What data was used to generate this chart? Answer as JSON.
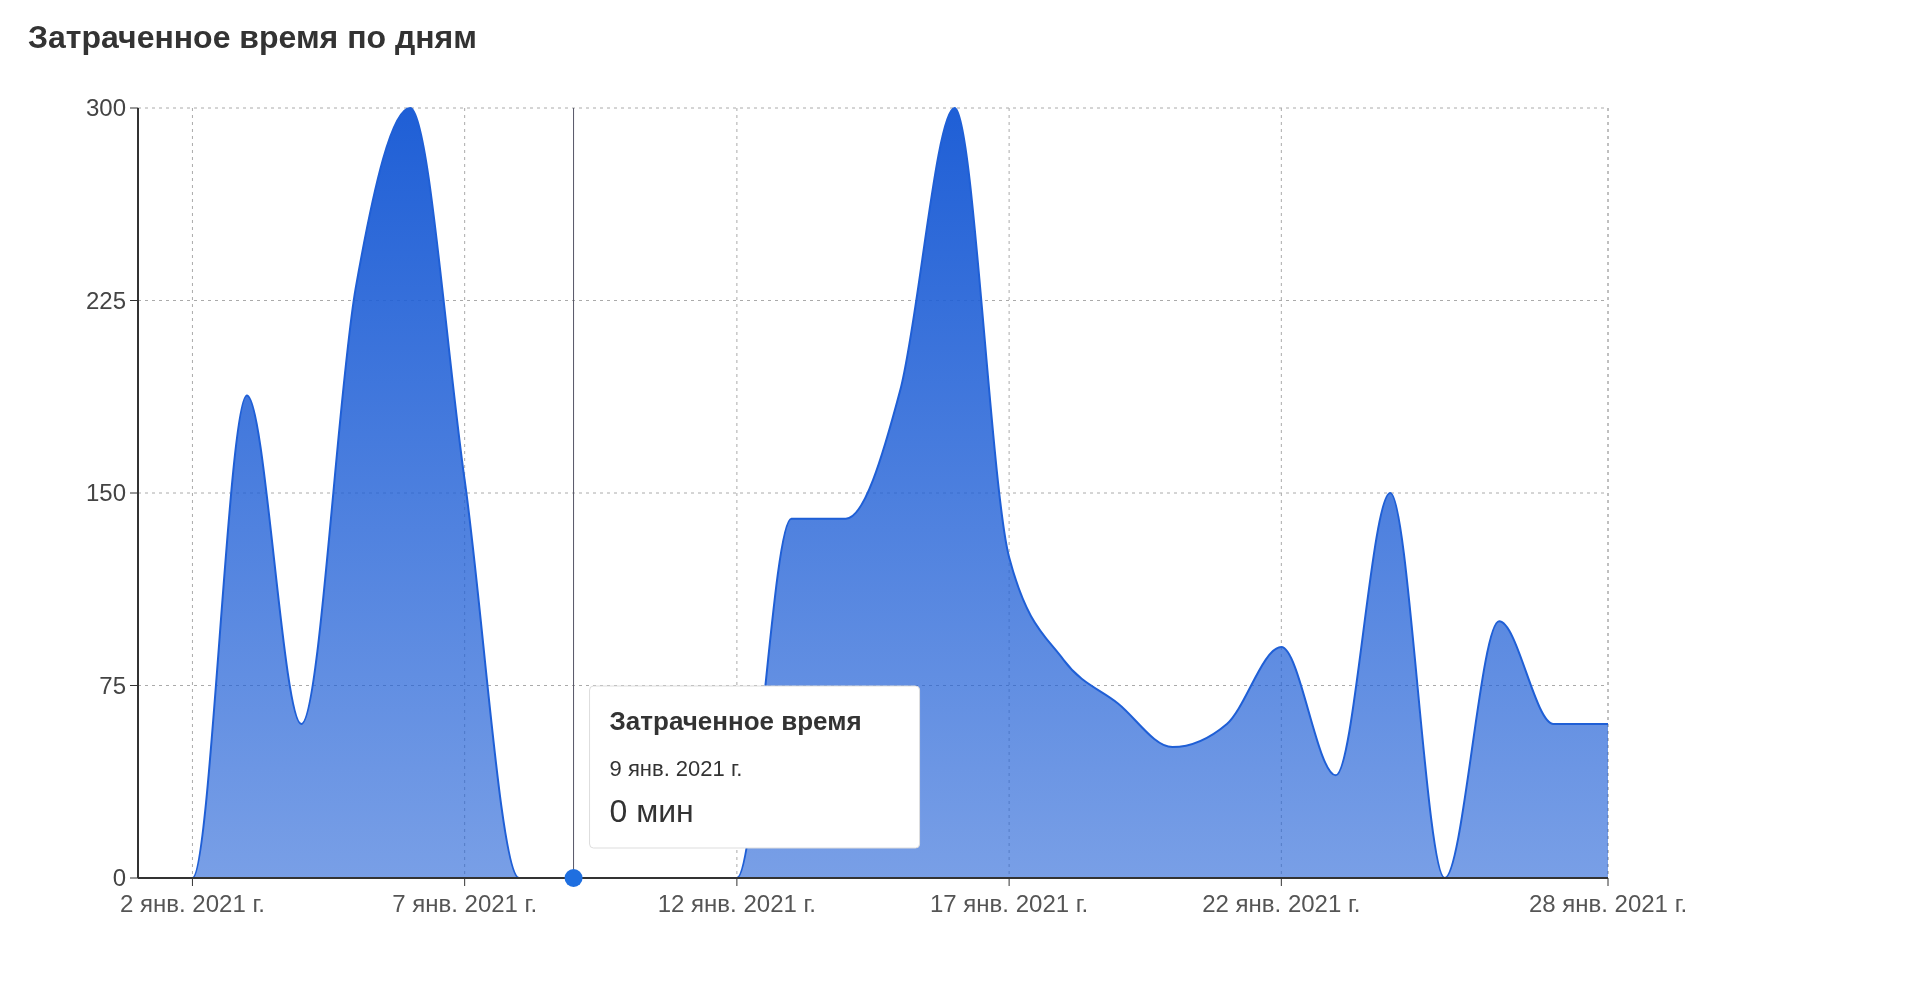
{
  "chart_data": {
    "type": "area",
    "title": "Затраченное время по дням",
    "x": [
      "2021-01-01",
      "2021-01-02",
      "2021-01-03",
      "2021-01-04",
      "2021-01-05",
      "2021-01-06",
      "2021-01-07",
      "2021-01-08",
      "2021-01-09",
      "2021-01-10",
      "2021-01-11",
      "2021-01-12",
      "2021-01-13",
      "2021-01-14",
      "2021-01-15",
      "2021-01-16",
      "2021-01-17",
      "2021-01-18",
      "2021-01-19",
      "2021-01-20",
      "2021-01-21",
      "2021-01-22",
      "2021-01-23",
      "2021-01-24",
      "2021-01-25",
      "2021-01-26",
      "2021-01-27",
      "2021-01-28"
    ],
    "series": [
      {
        "color": "#1f5fd6",
        "values": [
          0,
          0,
          188,
          60,
          230,
          300,
          155,
          0,
          0,
          0,
          0,
          0,
          140,
          140,
          190,
          300,
          125,
          85,
          68,
          51,
          60,
          90,
          40,
          150,
          0,
          100,
          60,
          60
        ]
      }
    ],
    "xlim": [
      "2021-01-01",
      "2021-01-28"
    ],
    "xticks": [
      {
        "value": "2021-01-02",
        "label": "2 янв. 2021 г."
      },
      {
        "value": "2021-01-07",
        "label": "7 янв. 2021 г."
      },
      {
        "value": "2021-01-12",
        "label": "12 янв. 2021 г."
      },
      {
        "value": "2021-01-17",
        "label": "17 янв. 2021 г."
      },
      {
        "value": "2021-01-22",
        "label": "22 янв. 2021 г."
      },
      {
        "value": "2021-01-28",
        "label": "28 янв. 2021 г."
      }
    ],
    "ylim": [
      0,
      300
    ],
    "yticks": [
      0,
      75,
      150,
      225,
      300
    ],
    "grid": true,
    "ref_lines": [
      {
        "axis": "x",
        "value": "2021-01-09",
        "color": "#555566"
      }
    ],
    "annotations": [
      {
        "text": "Затраченное время\n9 янв. 2021 г.\n0 мин",
        "x": "2021-01-09",
        "y": 0
      }
    ]
  }
}
